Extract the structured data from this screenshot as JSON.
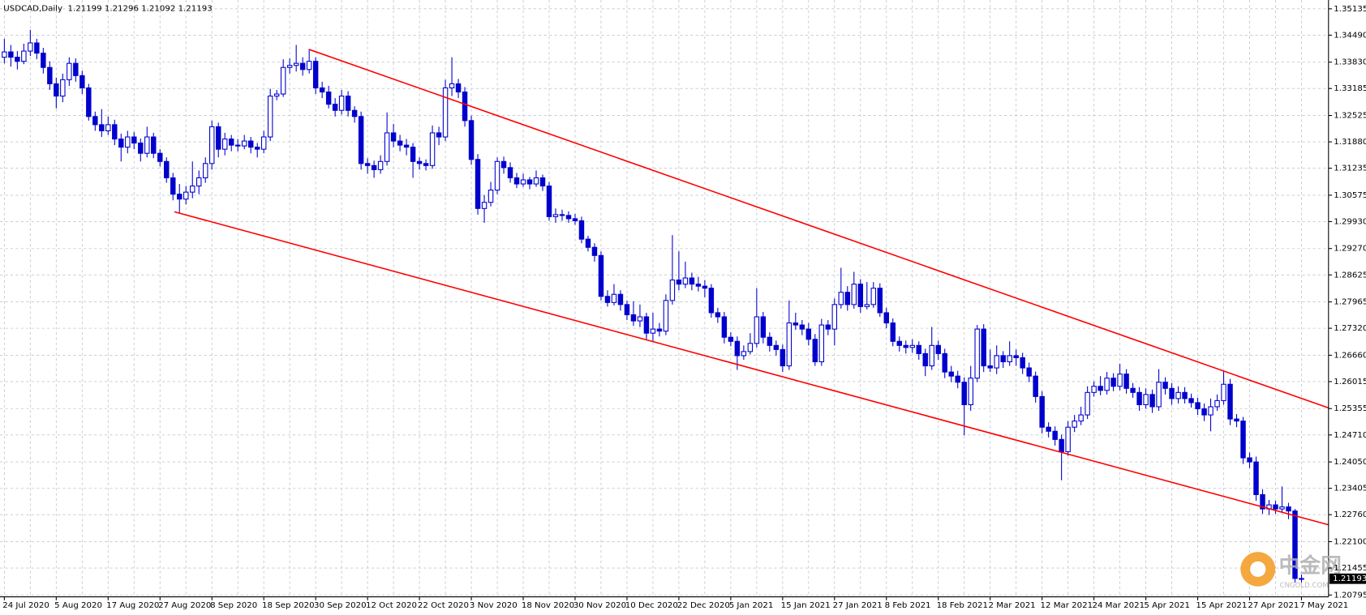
{
  "chart_data": {
    "type": "candlestick",
    "title": "USDCAD,Daily",
    "bull_color": "#ffffff",
    "bear_color": "#0000cd",
    "line_color": "#0000cd",
    "grid": true,
    "ylim": [
      1.2075,
      1.3535
    ],
    "yticks": [
      1.35135,
      {
        "value": 1.3449,
        "label": "1.34490"
      },
      {
        "value": 1.3383,
        "label": "1.33830"
      },
      1.33185,
      1.32525,
      {
        "value": 1.3188,
        "label": "1.31880"
      },
      1.31235,
      1.30575,
      {
        "value": 1.2993,
        "label": "1.29930"
      },
      {
        "value": 1.2927,
        "label": "1.29270"
      },
      1.28625,
      1.27965,
      {
        "value": 1.2732,
        "label": "1.27320"
      },
      {
        "value": 1.2666,
        "label": "1.26660"
      },
      1.26015,
      1.25355,
      {
        "value": 1.2471,
        "label": "1.24710"
      },
      {
        "value": 1.2405,
        "label": "1.24050"
      },
      1.23405,
      {
        "value": 1.2276,
        "label": "1.22760"
      },
      {
        "value": 1.221,
        "label": "1.22100"
      },
      1.21455,
      1.20795
    ],
    "categories": [
      "24 Jul 2020",
      null,
      null,
      null,
      null,
      null,
      null,
      null,
      "5 Aug 2020",
      null,
      null,
      null,
      null,
      null,
      null,
      null,
      "17 Aug 2020",
      null,
      null,
      null,
      null,
      null,
      null,
      null,
      "27 Aug 2020",
      null,
      null,
      null,
      null,
      null,
      null,
      null,
      "8 Sep 2020",
      null,
      null,
      null,
      null,
      null,
      null,
      null,
      "18 Sep 2020",
      null,
      null,
      null,
      null,
      null,
      null,
      null,
      "30 Sep 2020",
      null,
      null,
      null,
      null,
      null,
      null,
      null,
      "12 Oct 2020",
      null,
      null,
      null,
      null,
      null,
      null,
      null,
      "22 Oct 2020",
      null,
      null,
      null,
      null,
      null,
      null,
      null,
      "3 Nov 2020",
      null,
      null,
      null,
      null,
      null,
      null,
      null,
      "18 Nov 2020",
      null,
      null,
      null,
      null,
      null,
      null,
      null,
      "30 Nov 2020",
      null,
      null,
      null,
      null,
      null,
      null,
      null,
      "10 Dec 2020",
      null,
      null,
      null,
      null,
      null,
      null,
      null,
      "22 Dec 2020",
      null,
      null,
      null,
      null,
      null,
      null,
      null,
      "5 Jan 2021",
      null,
      null,
      null,
      null,
      null,
      null,
      null,
      "15 Jan 2021",
      null,
      null,
      null,
      null,
      null,
      null,
      null,
      "27 Jan 2021",
      null,
      null,
      null,
      null,
      null,
      null,
      null,
      "8 Feb 2021",
      null,
      null,
      null,
      null,
      null,
      null,
      null,
      "18 Feb 2021",
      null,
      null,
      null,
      null,
      null,
      null,
      null,
      "2 Mar 2021",
      null,
      null,
      null,
      null,
      null,
      null,
      null,
      "12 Mar 2021",
      null,
      null,
      null,
      null,
      null,
      null,
      null,
      "24 Mar 2021",
      null,
      null,
      null,
      null,
      null,
      null,
      null,
      "5 Apr 2021",
      null,
      null,
      null,
      null,
      null,
      null,
      null,
      "15 Apr 2021",
      null,
      null,
      null,
      null,
      null,
      null,
      null,
      "27 Apr 2021",
      null,
      null,
      null,
      null,
      null,
      null,
      null,
      "7 May 2021"
    ],
    "ohlc": [
      [
        1.3395,
        1.344,
        1.338,
        1.3408
      ],
      [
        1.3408,
        1.3425,
        1.3372,
        1.3395
      ],
      [
        1.3395,
        1.341,
        1.3365,
        1.3385
      ],
      [
        1.3385,
        1.3428,
        1.3378,
        1.341
      ],
      [
        1.341,
        1.3462,
        1.3398,
        1.343
      ],
      [
        1.343,
        1.344,
        1.339,
        1.3405
      ],
      [
        1.3405,
        1.3418,
        1.3355,
        1.337
      ],
      [
        1.337,
        1.3385,
        1.3315,
        1.333
      ],
      [
        1.333,
        1.3345,
        1.327,
        1.33
      ],
      [
        1.33,
        1.3355,
        1.3285,
        1.334
      ],
      [
        1.334,
        1.3395,
        1.3325,
        1.338
      ],
      [
        1.338,
        1.3392,
        1.3335,
        1.335
      ],
      [
        1.335,
        1.3362,
        1.3305,
        1.332
      ],
      [
        1.332,
        1.333,
        1.324,
        1.325
      ],
      [
        1.325,
        1.3262,
        1.3215,
        1.323
      ],
      [
        1.323,
        1.3268,
        1.32,
        1.3215
      ],
      [
        1.3215,
        1.325,
        1.3205,
        1.323
      ],
      [
        1.323,
        1.3242,
        1.318,
        1.3195
      ],
      [
        1.3195,
        1.3208,
        1.314,
        1.3175
      ],
      [
        1.3175,
        1.3215,
        1.316,
        1.32
      ],
      [
        1.32,
        1.3212,
        1.317,
        1.3185
      ],
      [
        1.3185,
        1.3196,
        1.314,
        1.316
      ],
      [
        1.316,
        1.3225,
        1.315,
        1.32
      ],
      [
        1.32,
        1.321,
        1.3148,
        1.316
      ],
      [
        1.316,
        1.317,
        1.3128,
        1.314
      ],
      [
        1.314,
        1.315,
        1.3088,
        1.31
      ],
      [
        1.31,
        1.3112,
        1.3045,
        1.306
      ],
      [
        1.306,
        1.3085,
        1.3015,
        1.3048
      ],
      [
        1.3048,
        1.308,
        1.3035,
        1.3065
      ],
      [
        1.3065,
        1.314,
        1.305,
        1.308
      ],
      [
        1.308,
        1.3118,
        1.306,
        1.31
      ],
      [
        1.31,
        1.315,
        1.3088,
        1.3135
      ],
      [
        1.3135,
        1.324,
        1.312,
        1.3225
      ],
      [
        1.3225,
        1.3235,
        1.315,
        1.317
      ],
      [
        1.317,
        1.321,
        1.3155,
        1.3195
      ],
      [
        1.3195,
        1.3205,
        1.3165,
        1.318
      ],
      [
        1.318,
        1.3195,
        1.3165,
        1.3178
      ],
      [
        1.3178,
        1.3205,
        1.317,
        1.319
      ],
      [
        1.319,
        1.32,
        1.316,
        1.3175
      ],
      [
        1.3175,
        1.3185,
        1.315,
        1.317
      ],
      [
        1.317,
        1.3215,
        1.316,
        1.32
      ],
      [
        1.32,
        1.3318,
        1.319,
        1.33
      ],
      [
        1.33,
        1.3315,
        1.329,
        1.3305
      ],
      [
        1.3305,
        1.339,
        1.3298,
        1.337
      ],
      [
        1.337,
        1.3392,
        1.3355,
        1.3375
      ],
      [
        1.3375,
        1.3425,
        1.336,
        1.338
      ],
      [
        1.338,
        1.3395,
        1.335,
        1.3365
      ],
      [
        1.3365,
        1.3415,
        1.3355,
        1.3385
      ],
      [
        1.3385,
        1.3395,
        1.3305,
        1.332
      ],
      [
        1.332,
        1.3335,
        1.3295,
        1.331
      ],
      [
        1.331,
        1.3325,
        1.327,
        1.328
      ],
      [
        1.328,
        1.3295,
        1.325,
        1.3265
      ],
      [
        1.3265,
        1.3315,
        1.3255,
        1.33
      ],
      [
        1.33,
        1.3312,
        1.325,
        1.3265
      ],
      [
        1.3265,
        1.3275,
        1.3235,
        1.325
      ],
      [
        1.325,
        1.3262,
        1.312,
        1.3135
      ],
      [
        1.3135,
        1.3148,
        1.311,
        1.313
      ],
      [
        1.313,
        1.3142,
        1.31,
        1.312
      ],
      [
        1.312,
        1.3155,
        1.311,
        1.314
      ],
      [
        1.314,
        1.326,
        1.313,
        1.321
      ],
      [
        1.321,
        1.3232,
        1.3175,
        1.319
      ],
      [
        1.319,
        1.3205,
        1.3165,
        1.318
      ],
      [
        1.318,
        1.3195,
        1.3155,
        1.3175
      ],
      [
        1.3175,
        1.3185,
        1.31,
        1.314
      ],
      [
        1.314,
        1.315,
        1.312,
        1.3135
      ],
      [
        1.3135,
        1.3145,
        1.3118,
        1.313
      ],
      [
        1.313,
        1.3228,
        1.3122,
        1.321
      ],
      [
        1.321,
        1.3225,
        1.318,
        1.32
      ],
      [
        1.32,
        1.334,
        1.319,
        1.332
      ],
      [
        1.332,
        1.3395,
        1.33,
        1.333
      ],
      [
        1.333,
        1.3342,
        1.3295,
        1.331
      ],
      [
        1.331,
        1.3322,
        1.3225,
        1.324
      ],
      [
        1.324,
        1.3252,
        1.3132,
        1.3145
      ],
      [
        1.3145,
        1.3158,
        1.301,
        1.3025
      ],
      [
        1.3025,
        1.3058,
        1.299,
        1.304
      ],
      [
        1.304,
        1.309,
        1.303,
        1.307
      ],
      [
        1.307,
        1.315,
        1.306,
        1.314
      ],
      [
        1.314,
        1.3152,
        1.311,
        1.3125
      ],
      [
        1.3125,
        1.3138,
        1.3088,
        1.31
      ],
      [
        1.31,
        1.3112,
        1.3075,
        1.3085
      ],
      [
        1.3085,
        1.311,
        1.3078,
        1.3095
      ],
      [
        1.3095,
        1.3102,
        1.3072,
        1.3085
      ],
      [
        1.3085,
        1.3118,
        1.3078,
        1.31
      ],
      [
        1.31,
        1.3108,
        1.3068,
        1.308
      ],
      [
        1.308,
        1.309,
        1.2995,
        1.3005
      ],
      [
        1.3005,
        1.3025,
        1.299,
        1.301
      ],
      [
        1.301,
        1.3022,
        1.2995,
        1.3008
      ],
      [
        1.3008,
        1.3018,
        1.299,
        1.3
      ],
      [
        1.3,
        1.3012,
        1.2985,
        1.2995
      ],
      [
        1.2995,
        1.3005,
        1.294,
        1.295
      ],
      [
        1.295,
        1.2958,
        1.292,
        1.293
      ],
      [
        1.293,
        1.294,
        1.2895,
        1.291
      ],
      [
        1.291,
        1.292,
        1.28,
        1.281
      ],
      [
        1.281,
        1.2825,
        1.2785,
        1.2795
      ],
      [
        1.2795,
        1.284,
        1.2788,
        1.2815
      ],
      [
        1.2815,
        1.2825,
        1.2775,
        1.279
      ],
      [
        1.279,
        1.28,
        1.2752,
        1.2765
      ],
      [
        1.2765,
        1.2798,
        1.2738,
        1.275
      ],
      [
        1.275,
        1.279,
        1.2735,
        1.276
      ],
      [
        1.276,
        1.277,
        1.2705,
        1.272
      ],
      [
        1.272,
        1.277,
        1.27,
        1.273
      ],
      [
        1.273,
        1.2745,
        1.2712,
        1.2725
      ],
      [
        1.2725,
        1.2815,
        1.2715,
        1.28
      ],
      [
        1.28,
        1.296,
        1.279,
        1.285
      ],
      [
        1.285,
        1.292,
        1.2825,
        1.284
      ],
      [
        1.284,
        1.2895,
        1.283,
        1.2855
      ],
      [
        1.2855,
        1.2868,
        1.2825,
        1.284
      ],
      [
        1.284,
        1.2858,
        1.2822,
        1.2835
      ],
      [
        1.2835,
        1.285,
        1.2808,
        1.283
      ],
      [
        1.283,
        1.284,
        1.2758,
        1.277
      ],
      [
        1.277,
        1.2782,
        1.2745,
        1.276
      ],
      [
        1.276,
        1.2772,
        1.2695,
        1.271
      ],
      [
        1.271,
        1.2722,
        1.2688,
        1.27
      ],
      [
        1.27,
        1.2712,
        1.263,
        1.2665
      ],
      [
        1.2665,
        1.269,
        1.2655,
        1.2675
      ],
      [
        1.2675,
        1.272,
        1.2668,
        1.2695
      ],
      [
        1.2695,
        1.283,
        1.2685,
        1.276
      ],
      [
        1.276,
        1.2772,
        1.2695,
        1.271
      ],
      [
        1.271,
        1.2722,
        1.2675,
        1.269
      ],
      [
        1.269,
        1.2702,
        1.2665,
        1.268
      ],
      [
        1.268,
        1.2692,
        1.2625,
        1.264
      ],
      [
        1.264,
        1.28,
        1.263,
        1.2745
      ],
      [
        1.2745,
        1.277,
        1.2728,
        1.274
      ],
      [
        1.274,
        1.2752,
        1.2715,
        1.273
      ],
      [
        1.273,
        1.2745,
        1.269,
        1.2705
      ],
      [
        1.2705,
        1.2718,
        1.264,
        1.265
      ],
      [
        1.265,
        1.2755,
        1.264,
        1.274
      ],
      [
        1.274,
        1.2752,
        1.2715,
        1.273
      ],
      [
        1.273,
        1.2805,
        1.269,
        1.279
      ],
      [
        1.279,
        1.288,
        1.278,
        1.282
      ],
      [
        1.282,
        1.2835,
        1.2775,
        1.279
      ],
      [
        1.279,
        1.287,
        1.278,
        1.284
      ],
      [
        1.284,
        1.2852,
        1.277,
        1.2785
      ],
      [
        1.2785,
        1.2845,
        1.2778,
        1.279
      ],
      [
        1.279,
        1.2845,
        1.2782,
        1.283
      ],
      [
        1.283,
        1.2842,
        1.276,
        1.277
      ],
      [
        1.277,
        1.2782,
        1.2732,
        1.2745
      ],
      [
        1.2745,
        1.2756,
        1.2688,
        1.27
      ],
      [
        1.27,
        1.2712,
        1.2675,
        1.269
      ],
      [
        1.269,
        1.2702,
        1.267,
        1.2685
      ],
      [
        1.2685,
        1.2705,
        1.2672,
        1.269
      ],
      [
        1.269,
        1.27,
        1.2655,
        1.267
      ],
      [
        1.267,
        1.2682,
        1.2615,
        1.264
      ],
      [
        1.264,
        1.2735,
        1.263,
        1.269
      ],
      [
        1.269,
        1.2702,
        1.2655,
        1.267
      ],
      [
        1.267,
        1.2682,
        1.261,
        1.2625
      ],
      [
        1.2625,
        1.264,
        1.26,
        1.2615
      ],
      [
        1.2615,
        1.2628,
        1.2585,
        1.26
      ],
      [
        1.26,
        1.2612,
        1.247,
        1.2545
      ],
      [
        1.2545,
        1.264,
        1.253,
        1.261
      ],
      [
        1.261,
        1.274,
        1.26,
        1.273
      ],
      [
        1.273,
        1.2742,
        1.2625,
        1.264
      ],
      [
        1.264,
        1.268,
        1.2625,
        1.2635
      ],
      [
        1.2635,
        1.269,
        1.262,
        1.2665
      ],
      [
        1.2665,
        1.2676,
        1.2635,
        1.265
      ],
      [
        1.265,
        1.27,
        1.264,
        1.2665
      ],
      [
        1.2665,
        1.268,
        1.264,
        1.266
      ],
      [
        1.266,
        1.2672,
        1.262,
        1.2635
      ],
      [
        1.2635,
        1.2648,
        1.26,
        1.2615
      ],
      [
        1.2615,
        1.2626,
        1.255,
        1.2565
      ],
      [
        1.2565,
        1.2578,
        1.2475,
        1.249
      ],
      [
        1.249,
        1.2502,
        1.2465,
        1.248
      ],
      [
        1.248,
        1.2492,
        1.2445,
        1.246
      ],
      [
        1.246,
        1.2472,
        1.236,
        1.243
      ],
      [
        1.243,
        1.2505,
        1.242,
        1.249
      ],
      [
        1.249,
        1.252,
        1.2478,
        1.2505
      ],
      [
        1.2505,
        1.254,
        1.2495,
        1.252
      ],
      [
        1.252,
        1.259,
        1.251,
        1.2575
      ],
      [
        1.2575,
        1.2602,
        1.2565,
        1.259
      ],
      [
        1.259,
        1.2615,
        1.2568,
        1.258
      ],
      [
        1.258,
        1.2625,
        1.257,
        1.261
      ],
      [
        1.261,
        1.2622,
        1.2578,
        1.259
      ],
      [
        1.259,
        1.2645,
        1.258,
        1.262
      ],
      [
        1.262,
        1.2632,
        1.2572,
        1.2585
      ],
      [
        1.2585,
        1.2598,
        1.2562,
        1.2575
      ],
      [
        1.2575,
        1.2588,
        1.253,
        1.2545
      ],
      [
        1.2545,
        1.2585,
        1.2535,
        1.257
      ],
      [
        1.257,
        1.2582,
        1.2525,
        1.254
      ],
      [
        1.254,
        1.2632,
        1.253,
        1.26
      ],
      [
        1.26,
        1.2612,
        1.257,
        1.2585
      ],
      [
        1.2585,
        1.2598,
        1.2545,
        1.256
      ],
      [
        1.256,
        1.259,
        1.2548,
        1.2575
      ],
      [
        1.2575,
        1.2588,
        1.2548,
        1.256
      ],
      [
        1.256,
        1.2572,
        1.2538,
        1.255
      ],
      [
        1.255,
        1.2562,
        1.252,
        1.2535
      ],
      [
        1.2535,
        1.2548,
        1.2505,
        1.252
      ],
      [
        1.252,
        1.256,
        1.248,
        1.254
      ],
      [
        1.254,
        1.257,
        1.253,
        1.2555
      ],
      [
        1.2555,
        1.2628,
        1.2545,
        1.2595
      ],
      [
        1.2595,
        1.2608,
        1.2495,
        1.251
      ],
      [
        1.251,
        1.2522,
        1.249,
        1.2505
      ],
      [
        1.2505,
        1.2515,
        1.24,
        1.2415
      ],
      [
        1.2415,
        1.2428,
        1.239,
        1.2405
      ],
      [
        1.2405,
        1.2418,
        1.231,
        1.2325
      ],
      [
        1.2325,
        1.2338,
        1.2278,
        1.229
      ],
      [
        1.229,
        1.2312,
        1.2275,
        1.23
      ],
      [
        1.23,
        1.231,
        1.2278,
        1.229
      ],
      [
        1.229,
        1.2345,
        1.228,
        1.2295
      ],
      [
        1.2295,
        1.2305,
        1.2265,
        1.2285
      ],
      [
        1.2285,
        1.229,
        1.211,
        1.212
      ],
      [
        1.21199,
        1.21296,
        1.21092,
        1.21193
      ]
    ],
    "trendlines": [
      {
        "color": "#ff0000",
        "x": [
          47,
          204.2
        ],
        "values": [
          1.3414,
          1.2537
        ]
      },
      {
        "color": "#ff0000",
        "x": [
          26.2,
          204.2
        ],
        "values": [
          1.3017,
          1.2251
        ]
      }
    ],
    "watermark": {
      "text": "中金网",
      "subtext": "CNGOLD.COM"
    }
  }
}
